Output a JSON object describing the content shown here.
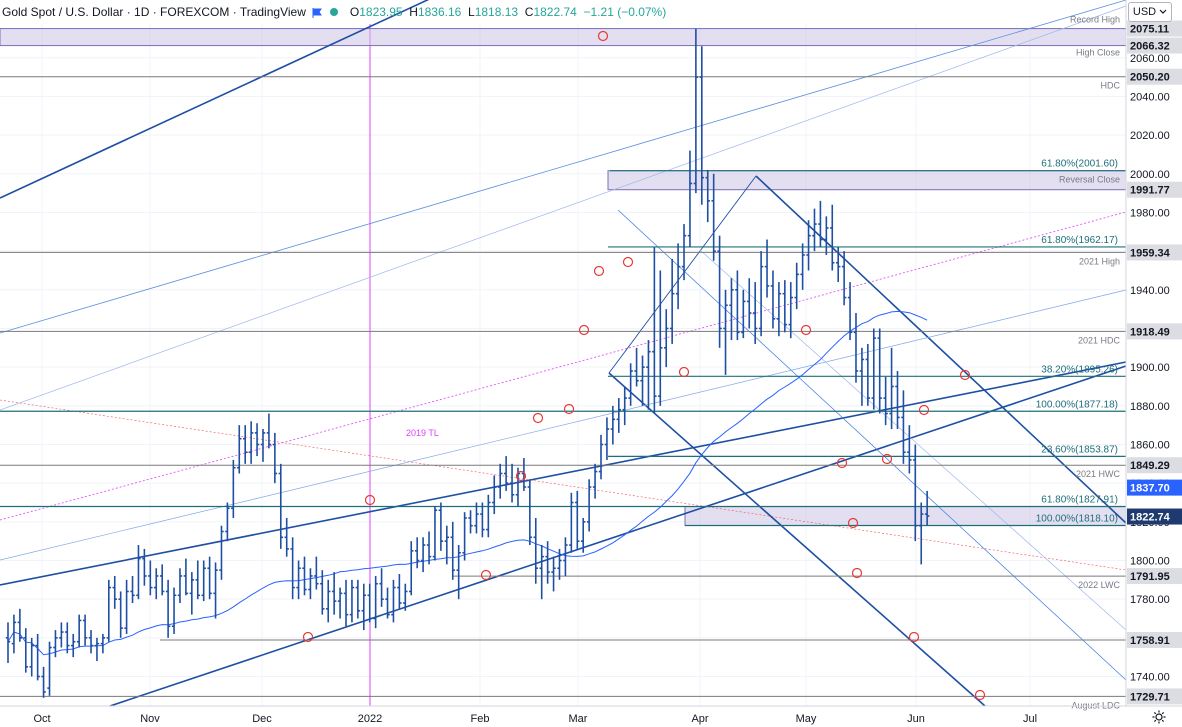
{
  "legend": {
    "symbol": "Gold Spot / U.S. Dollar · 1D · FOREXCOM · TradingView",
    "open_label": "O",
    "open": "1823.95",
    "high_label": "H",
    "high": "1836.16",
    "low_label": "L",
    "low": "1818.13",
    "close_label": "C",
    "close": "1822.74",
    "change": "−1.21 (−0.07%)"
  },
  "currency_button": "USD",
  "icons": {
    "flag": "flag-icon",
    "status": "dot-icon",
    "settings": "gear-icon",
    "dropdown": "chevron-down-icon"
  },
  "colors": {
    "up": "#26a69a",
    "down": "#ef5350",
    "bar": "#1e4fa3",
    "zone": "#ccc5e6",
    "line_blue": "#3d7be0",
    "ma": "#2962ff",
    "magenta": "#e040fb",
    "reference_line": "#7a7a7a"
  },
  "chart_data": {
    "type": "bar",
    "title": "Gold Spot / U.S. Dollar",
    "x_tick_labels": [
      "Oct",
      "Nov",
      "Dec",
      "2022",
      "Feb",
      "Mar",
      "Apr",
      "May",
      "Jun",
      "Jul"
    ],
    "y_ticks": [
      1740,
      1760,
      1780,
      1800,
      1820,
      1840,
      1860,
      1880,
      1900,
      1920,
      1940,
      1960,
      1980,
      2000,
      2020,
      2040,
      2060
    ],
    "ylim": [
      1724,
      2083
    ],
    "price_scale_labels": [
      "2075.11",
      "2066.32",
      "2050.20",
      "1991.77",
      "1959.34",
      "1918.49",
      "1849.29",
      "1837.70",
      "1822.74",
      "1791.95",
      "1758.91",
      "1729.71"
    ],
    "last_price": 1822.74,
    "ma_value": 1837.7,
    "zones": [
      {
        "label": "Record High",
        "from": 2066.32,
        "to": 2075.11
      },
      {
        "label": "High Close",
        "from": 2066.32,
        "to": 2066.32
      },
      {
        "label": "Reversal Close",
        "from": 1991.77,
        "to": 2001.6
      },
      {
        "label": "",
        "from": 1818.1,
        "to": 1827.91
      }
    ],
    "levels": [
      {
        "value": 2050.2,
        "label": "HDC",
        "tag": "2050.20"
      },
      {
        "value": 1959.34,
        "label": "2021 High",
        "tag": "1959.34"
      },
      {
        "value": 1918.49,
        "label": "2021 HDC",
        "tag": "1918.49"
      },
      {
        "value": 1849.29,
        "label": "2021 HWC",
        "tag": "1849.29"
      },
      {
        "value": 1791.95,
        "label": "2022 LWC",
        "tag": "1791.95"
      },
      {
        "value": 1758.91,
        "label": "",
        "tag": "1758.91"
      },
      {
        "value": 1729.71,
        "label": "August LDC",
        "tag": "1729.71"
      }
    ],
    "fib_levels": [
      {
        "value": 2001.6,
        "label": "61.80%(2001.60)"
      },
      {
        "value": 1962.17,
        "label": "61.80%(1962.17)"
      },
      {
        "value": 1895.26,
        "label": "38.20%(1895.26)"
      },
      {
        "value": 1877.18,
        "label": "100.00%(1877.18)"
      },
      {
        "value": 1853.87,
        "label": "23.60%(1853.87)"
      },
      {
        "value": 1827.91,
        "label": "61.80%(1827.91)"
      },
      {
        "value": 1818.1,
        "label": "100.00%(1818.10)"
      }
    ],
    "annotations": [
      {
        "text": "2019 TL"
      }
    ],
    "ohlc": [
      [
        1760,
        1768,
        1747,
        1758
      ],
      [
        1757,
        1772,
        1752,
        1768
      ],
      [
        1768,
        1775,
        1758,
        1760
      ],
      [
        1760,
        1765,
        1742,
        1745
      ],
      [
        1745,
        1760,
        1740,
        1756
      ],
      [
        1756,
        1762,
        1738,
        1740
      ],
      [
        1740,
        1745,
        1729,
        1732
      ],
      [
        1734,
        1758,
        1730,
        1755
      ],
      [
        1755,
        1764,
        1750,
        1760
      ],
      [
        1760,
        1768,
        1755,
        1763
      ],
      [
        1763,
        1768,
        1752,
        1756
      ],
      [
        1756,
        1762,
        1750,
        1758
      ],
      [
        1758,
        1772,
        1755,
        1769
      ],
      [
        1769,
        1772,
        1756,
        1760
      ],
      [
        1760,
        1764,
        1752,
        1756
      ],
      [
        1756,
        1760,
        1748,
        1757
      ],
      [
        1757,
        1762,
        1752,
        1760
      ],
      [
        1760,
        1790,
        1758,
        1786
      ],
      [
        1786,
        1792,
        1775,
        1780
      ],
      [
        1780,
        1784,
        1760,
        1765
      ],
      [
        1765,
        1790,
        1762,
        1784
      ],
      [
        1784,
        1792,
        1778,
        1782
      ],
      [
        1782,
        1808,
        1780,
        1801
      ],
      [
        1801,
        1806,
        1787,
        1792
      ],
      [
        1792,
        1800,
        1782,
        1786
      ],
      [
        1786,
        1796,
        1780,
        1792
      ],
      [
        1792,
        1798,
        1782,
        1784
      ],
      [
        1784,
        1790,
        1760,
        1766
      ],
      [
        1766,
        1786,
        1762,
        1782
      ],
      [
        1782,
        1796,
        1778,
        1792
      ],
      [
        1792,
        1801,
        1782,
        1783
      ],
      [
        1783,
        1794,
        1772,
        1790
      ],
      [
        1790,
        1800,
        1780,
        1782
      ],
      [
        1782,
        1800,
        1779,
        1796
      ],
      [
        1796,
        1802,
        1780,
        1783
      ],
      [
        1783,
        1799,
        1770,
        1795
      ],
      [
        1795,
        1818,
        1790,
        1815
      ],
      [
        1815,
        1830,
        1810,
        1827
      ],
      [
        1827,
        1852,
        1822,
        1848
      ],
      [
        1848,
        1870,
        1845,
        1863
      ],
      [
        1863,
        1870,
        1850,
        1856
      ],
      [
        1856,
        1872,
        1850,
        1866
      ],
      [
        1866,
        1871,
        1854,
        1860
      ],
      [
        1860,
        1868,
        1851,
        1866
      ],
      [
        1866,
        1876,
        1858,
        1860
      ],
      [
        1860,
        1866,
        1840,
        1845
      ],
      [
        1845,
        1850,
        1806,
        1812
      ],
      [
        1812,
        1822,
        1802,
        1806
      ],
      [
        1806,
        1812,
        1780,
        1786
      ],
      [
        1786,
        1800,
        1780,
        1796
      ],
      [
        1796,
        1802,
        1782,
        1785
      ],
      [
        1785,
        1796,
        1780,
        1792
      ],
      [
        1792,
        1802,
        1785,
        1788
      ],
      [
        1788,
        1795,
        1772,
        1775
      ],
      [
        1775,
        1790,
        1768,
        1784
      ],
      [
        1784,
        1794,
        1772,
        1779
      ],
      [
        1779,
        1786,
        1770,
        1783
      ],
      [
        1783,
        1790,
        1766,
        1772
      ],
      [
        1772,
        1790,
        1768,
        1786
      ],
      [
        1786,
        1790,
        1770,
        1774
      ],
      [
        1774,
        1788,
        1764,
        1782
      ],
      [
        1782,
        1788,
        1768,
        1770
      ],
      [
        1770,
        1792,
        1765,
        1788
      ],
      [
        1788,
        1796,
        1776,
        1780
      ],
      [
        1780,
        1786,
        1770,
        1772
      ],
      [
        1772,
        1790,
        1768,
        1786
      ],
      [
        1786,
        1793,
        1775,
        1778
      ],
      [
        1778,
        1788,
        1774,
        1784
      ],
      [
        1784,
        1810,
        1782,
        1805
      ],
      [
        1805,
        1812,
        1796,
        1800
      ],
      [
        1800,
        1812,
        1794,
        1808
      ],
      [
        1808,
        1815,
        1798,
        1802
      ],
      [
        1802,
        1828,
        1800,
        1826
      ],
      [
        1826,
        1830,
        1805,
        1810
      ],
      [
        1810,
        1818,
        1798,
        1812
      ],
      [
        1812,
        1820,
        1790,
        1795
      ],
      [
        1795,
        1808,
        1780,
        1804
      ],
      [
        1804,
        1825,
        1800,
        1822
      ],
      [
        1822,
        1826,
        1814,
        1818
      ],
      [
        1818,
        1830,
        1814,
        1824
      ],
      [
        1824,
        1830,
        1812,
        1816
      ],
      [
        1816,
        1834,
        1812,
        1830
      ],
      [
        1830,
        1844,
        1824,
        1838
      ],
      [
        1838,
        1850,
        1832,
        1845
      ],
      [
        1845,
        1854,
        1836,
        1840
      ],
      [
        1840,
        1850,
        1830,
        1834
      ],
      [
        1834,
        1848,
        1828,
        1845
      ],
      [
        1845,
        1853,
        1836,
        1838
      ],
      [
        1838,
        1842,
        1808,
        1812
      ],
      [
        1812,
        1822,
        1788,
        1796
      ],
      [
        1796,
        1808,
        1780,
        1802
      ],
      [
        1802,
        1810,
        1788,
        1794
      ],
      [
        1794,
        1802,
        1784,
        1796
      ],
      [
        1796,
        1806,
        1790,
        1800
      ],
      [
        1800,
        1812,
        1792,
        1808
      ],
      [
        1808,
        1835,
        1804,
        1830
      ],
      [
        1830,
        1836,
        1806,
        1810
      ],
      [
        1810,
        1822,
        1804,
        1820
      ],
      [
        1820,
        1842,
        1815,
        1838
      ],
      [
        1838,
        1850,
        1832,
        1846
      ],
      [
        1846,
        1865,
        1842,
        1860
      ],
      [
        1860,
        1874,
        1852,
        1868
      ],
      [
        1868,
        1880,
        1860,
        1873
      ],
      [
        1873,
        1884,
        1866,
        1878
      ],
      [
        1878,
        1890,
        1870,
        1884
      ],
      [
        1884,
        1902,
        1880,
        1898
      ],
      [
        1898,
        1910,
        1890,
        1893
      ],
      [
        1893,
        1906,
        1880,
        1900
      ],
      [
        1900,
        1914,
        1878,
        1908
      ],
      [
        1908,
        1962,
        1876,
        1885
      ],
      [
        1885,
        1950,
        1880,
        1910
      ],
      [
        1910,
        1930,
        1900,
        1920
      ],
      [
        1920,
        1956,
        1912,
        1938
      ],
      [
        1938,
        1964,
        1930,
        1952
      ],
      [
        1952,
        1974,
        1945,
        1968
      ],
      [
        1968,
        2012,
        1962,
        1995
      ],
      [
        1995,
        2075,
        1990,
        2050
      ],
      [
        2050,
        2066,
        1984,
        1998
      ],
      [
        1998,
        2002,
        1975,
        1986
      ],
      [
        1986,
        2000,
        1955,
        1960
      ],
      [
        1960,
        1968,
        1910,
        1920
      ],
      [
        1920,
        1940,
        1896,
        1932
      ],
      [
        1932,
        1946,
        1914,
        1940
      ],
      [
        1940,
        1950,
        1914,
        1918
      ],
      [
        1918,
        1940,
        1915,
        1934
      ],
      [
        1934,
        1946,
        1920,
        1928
      ],
      [
        1928,
        1944,
        1912,
        1920
      ],
      [
        1920,
        1960,
        1916,
        1952
      ],
      [
        1952,
        1966,
        1936,
        1942
      ],
      [
        1942,
        1950,
        1920,
        1925
      ],
      [
        1925,
        1944,
        1916,
        1938
      ],
      [
        1938,
        1945,
        1918,
        1922
      ],
      [
        1922,
        1944,
        1915,
        1936
      ],
      [
        1936,
        1954,
        1930,
        1948
      ],
      [
        1948,
        1964,
        1940,
        1958
      ],
      [
        1958,
        1976,
        1950,
        1968
      ],
      [
        1968,
        1982,
        1960,
        1974
      ],
      [
        1974,
        1986,
        1962,
        1966
      ],
      [
        1966,
        1978,
        1958,
        1972
      ],
      [
        1972,
        1984,
        1950,
        1954
      ],
      [
        1954,
        1962,
        1944,
        1952
      ],
      [
        1952,
        1960,
        1932,
        1936
      ],
      [
        1936,
        1944,
        1914,
        1918
      ],
      [
        1918,
        1928,
        1892,
        1898
      ],
      [
        1898,
        1910,
        1880,
        1904
      ],
      [
        1904,
        1912,
        1880,
        1884
      ],
      [
        1884,
        1920,
        1878,
        1915
      ],
      [
        1915,
        1920,
        1876,
        1884
      ],
      [
        1884,
        1895,
        1870,
        1876
      ],
      [
        1876,
        1910,
        1868,
        1890
      ],
      [
        1890,
        1898,
        1868,
        1874
      ],
      [
        1874,
        1888,
        1850,
        1856
      ],
      [
        1856,
        1870,
        1845,
        1852
      ],
      [
        1852,
        1860,
        1810,
        1818
      ],
      [
        1818,
        1830,
        1798,
        1824
      ],
      [
        1824,
        1836,
        1818,
        1823
      ]
    ]
  }
}
